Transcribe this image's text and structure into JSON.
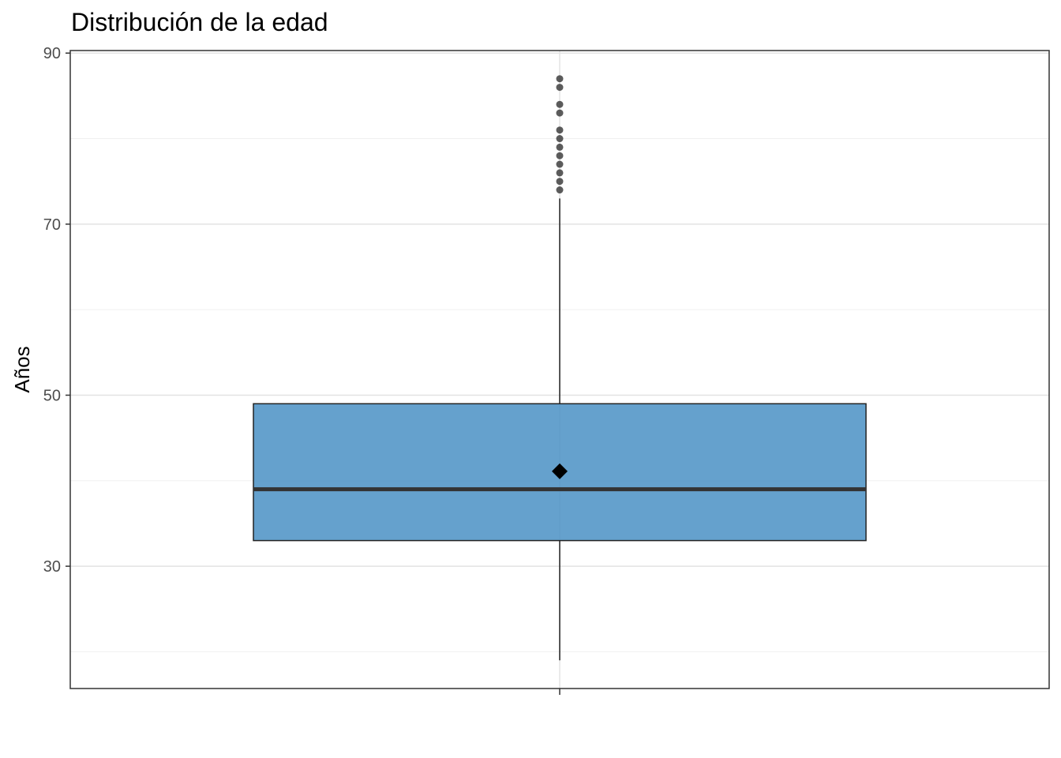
{
  "chart_data": {
    "type": "boxplot",
    "title": "Distribución de la edad",
    "xlabel": "",
    "ylabel": "Años",
    "ylim": [
      15.7,
      90.3
    ],
    "y_ticks": [
      30,
      50,
      70,
      90
    ],
    "y_minor_ticks": [
      20,
      40,
      60,
      80
    ],
    "grid": true,
    "box": {
      "whisker_low": 19,
      "q1": 33,
      "median": 39,
      "mean": 41.1,
      "q3": 49,
      "whisker_high": 73,
      "fill_color": "#4a90c4",
      "outliers": [
        74,
        75,
        76,
        77,
        78,
        79,
        80,
        81,
        83,
        84,
        86,
        87
      ]
    }
  }
}
